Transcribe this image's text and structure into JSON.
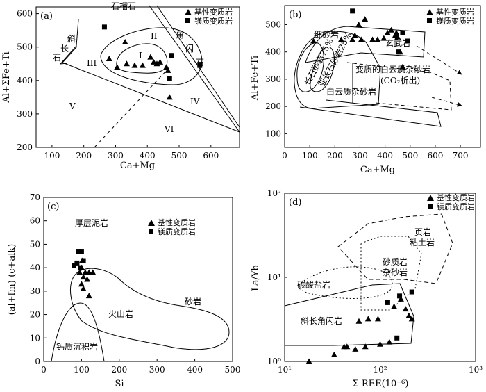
{
  "legend": {
    "basic": "基性变质岩",
    "mafic": "镁质变质岩"
  },
  "chart_data": [
    {
      "type": "scatter",
      "panel": "(a)",
      "xlabel": "Ca+Mg",
      "ylabel": "Al+ΣFe+Ti",
      "xlim": [
        50,
        690
      ],
      "ylim": [
        200,
        620
      ],
      "xticks": [
        100,
        200,
        300,
        400,
        500,
        600
      ],
      "yticks": [
        200,
        300,
        400,
        500,
        600
      ],
      "series": [
        {
          "name": "基性变质岩",
          "marker": "triangle",
          "points": [
            [
              280,
              465
            ],
            [
              305,
              440
            ],
            [
              330,
              515
            ],
            [
              335,
              450
            ],
            [
              360,
              445
            ],
            [
              385,
              445
            ],
            [
              410,
              470
            ],
            [
              420,
              455
            ],
            [
              430,
              450
            ],
            [
              440,
              455
            ],
            [
              460,
              440
            ],
            [
              465,
              430
            ],
            [
              470,
              350
            ]
          ]
        },
        {
          "name": "镁质变质岩",
          "marker": "square",
          "points": [
            [
              265,
              560
            ],
            [
              470,
              405
            ],
            [
              475,
              475
            ],
            [
              565,
              445
            ]
          ]
        }
      ],
      "labels": {
        "top": "石榴石",
        "left1": "斜",
        "left2": "长",
        "left3": "石",
        "right1": "角",
        "right2": "闪",
        "right3": "石",
        "I": "I",
        "II": "II",
        "III": "III",
        "IV": "IV",
        "V": "V",
        "VI": "VI"
      }
    },
    {
      "type": "scatter",
      "panel": "(b)",
      "xlabel": "Ca+Mg",
      "ylabel": "Al+Fe+Ti",
      "xlim": [
        0,
        780
      ],
      "ylim": [
        50,
        570
      ],
      "xticks": [
        0,
        100,
        200,
        300,
        400,
        500,
        600,
        700
      ],
      "yticks": [
        100,
        200,
        300,
        400,
        500
      ],
      "series": [
        {
          "name": "基性变质岩",
          "marker": "triangle",
          "points": [
            [
              115,
              440
            ],
            [
              225,
              445
            ],
            [
              270,
              445
            ],
            [
              280,
              460
            ],
            [
              295,
              500
            ],
            [
              305,
              445
            ],
            [
              320,
              520
            ],
            [
              350,
              445
            ],
            [
              370,
              445
            ],
            [
              395,
              450
            ],
            [
              410,
              470
            ],
            [
              425,
              480
            ],
            [
              440,
              460
            ],
            [
              445,
              470
            ],
            [
              450,
              455
            ],
            [
              460,
              400
            ],
            [
              470,
              345
            ]
          ]
        },
        {
          "name": "镁质变质岩",
          "marker": "square",
          "points": [
            [
              270,
              550
            ],
            [
              455,
              400
            ],
            [
              470,
              470
            ],
            [
              490,
              440
            ]
          ]
        }
      ],
      "labels": {
        "xiSha": "细砂岩",
        "xuanWu": "玄武岩",
        "changShi": "长石砂岩75%",
        "yaChangShi": "亚长石砂岩25%",
        "bianZhi": "变质的白云质杂砂岩",
        "co2": "(CO₂析出)",
        "baiYun": "白云质杂砂岩"
      }
    },
    {
      "type": "scatter",
      "panel": "(c)",
      "xlabel": "Si",
      "ylabel": "(al+fm)-(c+alk)",
      "xlim": [
        0,
        500
      ],
      "ylim": [
        0,
        70
      ],
      "xticks": [
        0,
        100,
        200,
        300,
        400,
        500
      ],
      "yticks": [
        0,
        10,
        20,
        30,
        40,
        50,
        60,
        70
      ],
      "series": [
        {
          "name": "基性变质岩",
          "marker": "triangle",
          "points": [
            [
              95,
              38
            ],
            [
              100,
              33
            ],
            [
              100,
              40
            ],
            [
              105,
              36
            ],
            [
              105,
              31
            ],
            [
              110,
              38
            ],
            [
              115,
              35
            ],
            [
              120,
              28
            ],
            [
              120,
              38
            ],
            [
              130,
              38
            ],
            [
              102,
              43
            ]
          ]
        },
        {
          "name": "镁质变质岩",
          "marker": "square",
          "points": [
            [
              80,
              41
            ],
            [
              88,
              42
            ],
            [
              92,
              47
            ],
            [
              100,
              47
            ],
            [
              98,
              40
            ],
            [
              105,
              43
            ]
          ]
        }
      ],
      "labels": {
        "houCeng": "厚层泥岩",
        "huoShan": "火山岩",
        "shaYan": "砂岩",
        "gaiZhi": "钙质沉积岩"
      }
    },
    {
      "type": "scatter",
      "panel": "(d)",
      "xlabel": "Σ REE(10⁻⁶)",
      "ylabel": "La/Yb",
      "xscale": "log",
      "yscale": "log",
      "xlim": [
        10,
        1000
      ],
      "ylim": [
        1,
        100
      ],
      "xticks": [
        "10¹",
        "10²",
        "10³"
      ],
      "yticks": [
        "10⁰",
        "10¹",
        "10²"
      ],
      "series": [
        {
          "name": "基性变质岩",
          "marker": "triangle",
          "points": [
            [
              18,
              1.0
            ],
            [
              33,
              1.2
            ],
            [
              42,
              1.5
            ],
            [
              45,
              1.5
            ],
            [
              55,
              1.4
            ],
            [
              60,
              3.0
            ],
            [
              70,
              1.5
            ],
            [
              75,
              3.2
            ],
            [
              95,
              3.2
            ],
            [
              100,
              1.6
            ],
            [
              125,
              1.7
            ],
            [
              140,
              4.5
            ],
            [
              165,
              5.5
            ],
            [
              185,
              4.2
            ],
            [
              200,
              3.5
            ],
            [
              215,
              3.2
            ]
          ]
        },
        {
          "name": "镁质变质岩",
          "marker": "square",
          "points": [
            [
              120,
              5.0
            ],
            [
              150,
              1.9
            ],
            [
              160,
              6.0
            ],
            [
              215,
              6.7
            ]
          ]
        }
      ],
      "labels": {
        "yeYan": "页岩",
        "nianTu": "粘土岩",
        "shaZhi": "砂质岩",
        "zaSha": "杂砂岩",
        "tanSuan": "碳酸盐岩",
        "xieChang": "斜长角闪岩"
      }
    }
  ]
}
